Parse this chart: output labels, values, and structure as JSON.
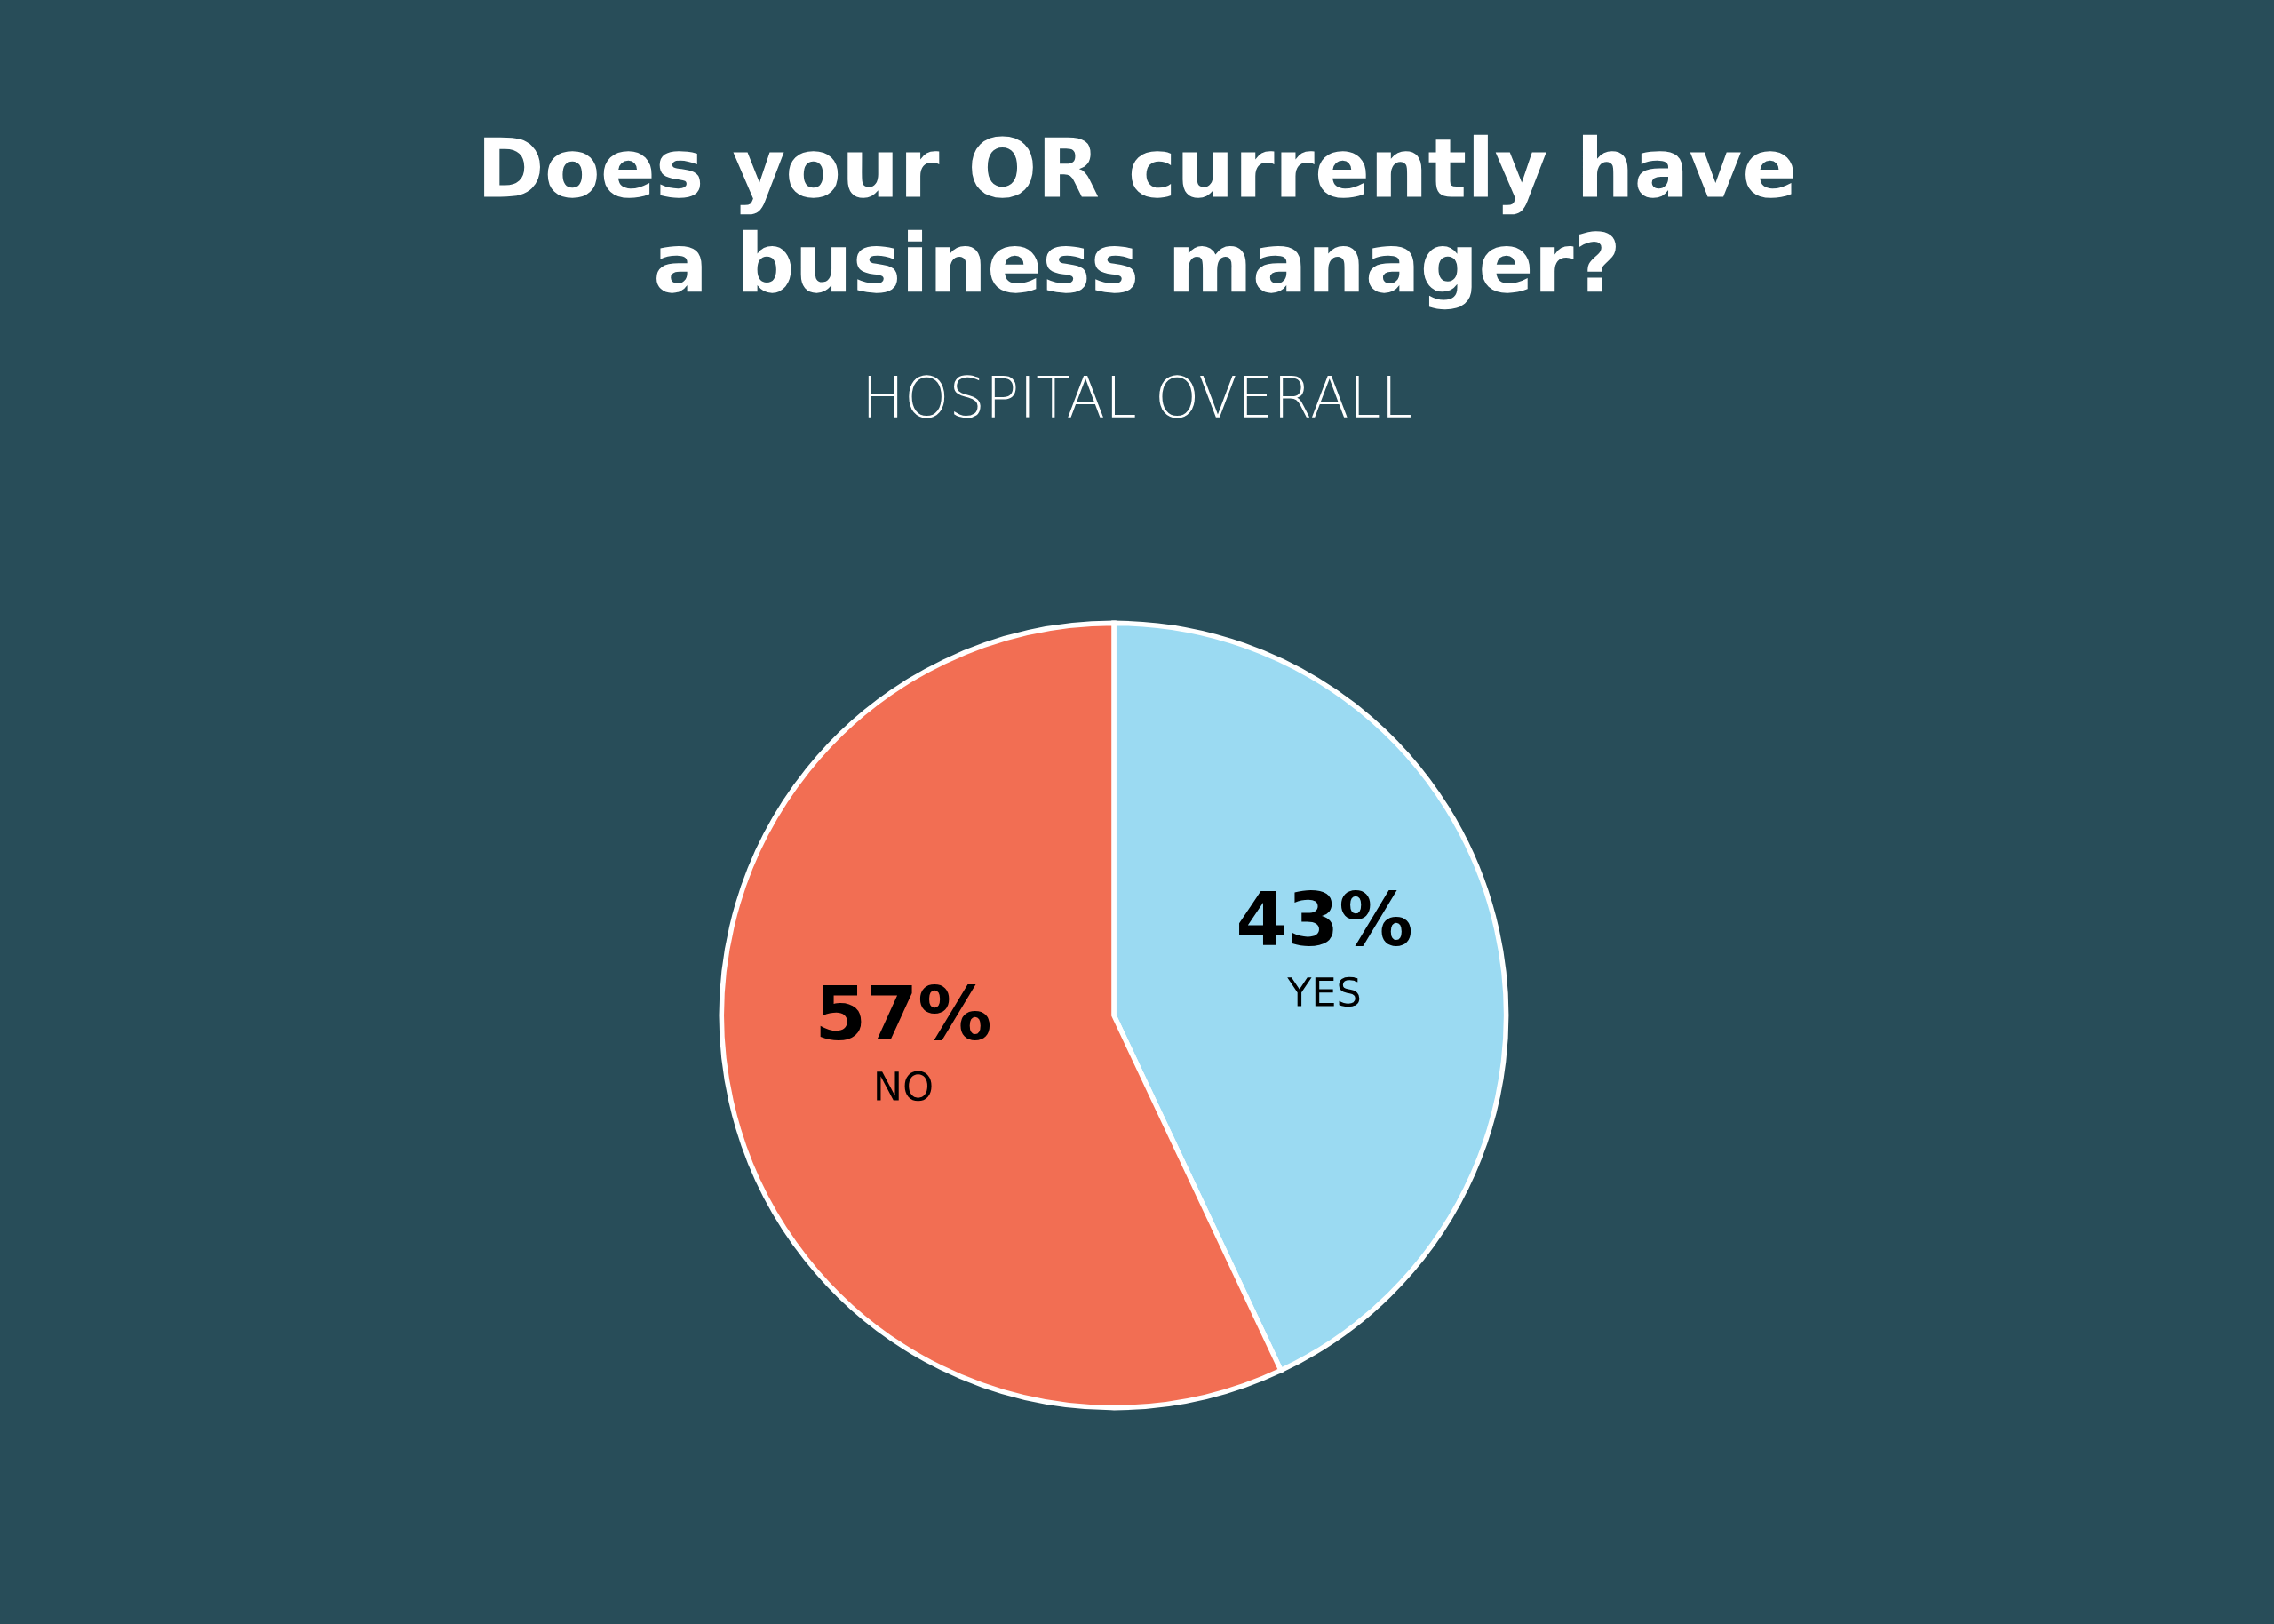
{
  "chart_data": {
    "type": "pie",
    "title": "Does your OR currently have\na business manager?",
    "subtitle": "HOSPITAL OVERALL",
    "categories": [
      "YES",
      "NO"
    ],
    "values": [
      43,
      57
    ],
    "colors": [
      "#9bdaf2",
      "#f26e53"
    ],
    "value_labels": [
      "43%",
      "57%"
    ]
  }
}
